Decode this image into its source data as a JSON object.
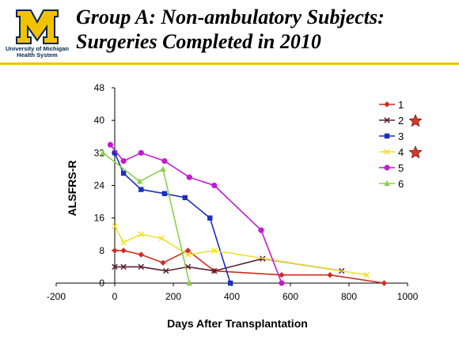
{
  "header": {
    "logo_text_line1": "University of Michigan",
    "logo_text_line2": "Health System",
    "title_line1": "Group A: Non-ambulatory Subjects:",
    "title_line2": "Surgeries Completed in 2010"
  },
  "colors": {
    "maize": "#f2c200",
    "blue": "#00274c"
  },
  "chart_data": {
    "type": "line",
    "xlabel": "Days After Transplantation",
    "ylabel": "ALSFRS-R",
    "xlim": [
      -200,
      1000
    ],
    "ylim": [
      0,
      48
    ],
    "xticks": [
      -200,
      0,
      200,
      400,
      600,
      800,
      1000
    ],
    "yticks": [
      0,
      8,
      16,
      24,
      32,
      40,
      48
    ],
    "grid": false,
    "legend_position": "top-right",
    "series": [
      {
        "name": "1",
        "color": "#d42a1e",
        "marker": "diamond",
        "starred": false,
        "points": [
          [
            0,
            8
          ],
          [
            30,
            8
          ],
          [
            90,
            7
          ],
          [
            165,
            5
          ],
          [
            250,
            8
          ],
          [
            340,
            3
          ],
          [
            570,
            2
          ],
          [
            735,
            2
          ],
          [
            920,
            0
          ]
        ]
      },
      {
        "name": "2",
        "color": "#5c2030",
        "marker": "x",
        "starred": true,
        "points": [
          [
            0,
            4
          ],
          [
            30,
            4
          ],
          [
            90,
            4
          ],
          [
            175,
            3
          ],
          [
            250,
            4
          ],
          [
            340,
            3
          ],
          [
            505,
            6
          ],
          [
            775,
            3
          ]
        ]
      },
      {
        "name": "3",
        "color": "#1a2fbe",
        "marker": "square",
        "starred": false,
        "points": [
          [
            0,
            32
          ],
          [
            30,
            27
          ],
          [
            90,
            23
          ],
          [
            170,
            22
          ],
          [
            240,
            21
          ],
          [
            325,
            16
          ],
          [
            395,
            0
          ]
        ]
      },
      {
        "name": "4",
        "color": "#f0e030",
        "marker": "x",
        "starred": true,
        "points": [
          [
            0,
            14
          ],
          [
            30,
            10
          ],
          [
            90,
            12
          ],
          [
            160,
            11
          ],
          [
            250,
            7
          ],
          [
            340,
            8
          ],
          [
            860,
            2
          ]
        ]
      },
      {
        "name": "5",
        "color": "#c21ad1",
        "marker": "circle",
        "starred": false,
        "points": [
          [
            -15,
            34
          ],
          [
            30,
            30
          ],
          [
            90,
            32
          ],
          [
            170,
            30
          ],
          [
            255,
            26
          ],
          [
            340,
            24
          ],
          [
            500,
            13
          ],
          [
            570,
            0
          ]
        ]
      },
      {
        "name": "6",
        "color": "#8ccf4a",
        "marker": "triangle",
        "starred": false,
        "points": [
          [
            -40,
            32
          ],
          [
            85,
            25
          ],
          [
            165,
            28
          ],
          [
            255,
            0
          ]
        ]
      }
    ]
  }
}
